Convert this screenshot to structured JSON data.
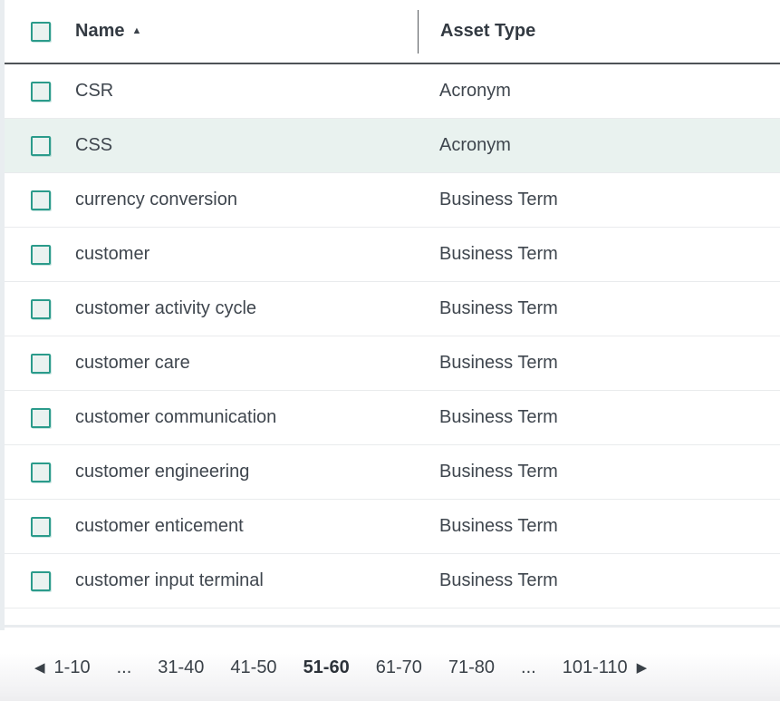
{
  "header": {
    "select_all_checkbox": {
      "checked": false
    },
    "columns": [
      {
        "label": "Name",
        "sort": "ascending",
        "sort_icon": "▲"
      },
      {
        "label": "Asset Type",
        "sort": null
      }
    ]
  },
  "rows": [
    {
      "name": "CSR",
      "asset_type": "Acronym",
      "highlighted": false
    },
    {
      "name": "CSS",
      "asset_type": "Acronym",
      "highlighted": true
    },
    {
      "name": "currency conversion",
      "asset_type": "Business Term",
      "highlighted": false
    },
    {
      "name": "customer",
      "asset_type": "Business Term",
      "highlighted": false
    },
    {
      "name": "customer activity cycle",
      "asset_type": "Business Term",
      "highlighted": false
    },
    {
      "name": "customer care",
      "asset_type": "Business Term",
      "highlighted": false
    },
    {
      "name": "customer communication",
      "asset_type": "Business Term",
      "highlighted": false
    },
    {
      "name": "customer engineering",
      "asset_type": "Business Term",
      "highlighted": false
    },
    {
      "name": "customer enticement",
      "asset_type": "Business Term",
      "highlighted": false
    },
    {
      "name": "customer input terminal",
      "asset_type": "Business Term",
      "highlighted": false
    }
  ],
  "pagination": {
    "prev_icon": "◀",
    "next_icon": "▶",
    "items": [
      "1-10",
      "...",
      "31-40",
      "41-50",
      "51-60",
      "61-70",
      "71-80",
      "...",
      "101-110"
    ],
    "active_item": "51-60"
  },
  "colors": {
    "checkbox_border": "#2b9b8b",
    "checkbox_fill": "#eaf2f0",
    "row_highlight": "#e9f2ef",
    "header_underline": "#4e5357",
    "column_divider": "#55595d",
    "row_divider": "#e9ebed",
    "row_text": "#3f464e",
    "header_text": "#333a42",
    "left_strip": "#e9edf0",
    "footer_gradient_bottom": "#ededef"
  }
}
